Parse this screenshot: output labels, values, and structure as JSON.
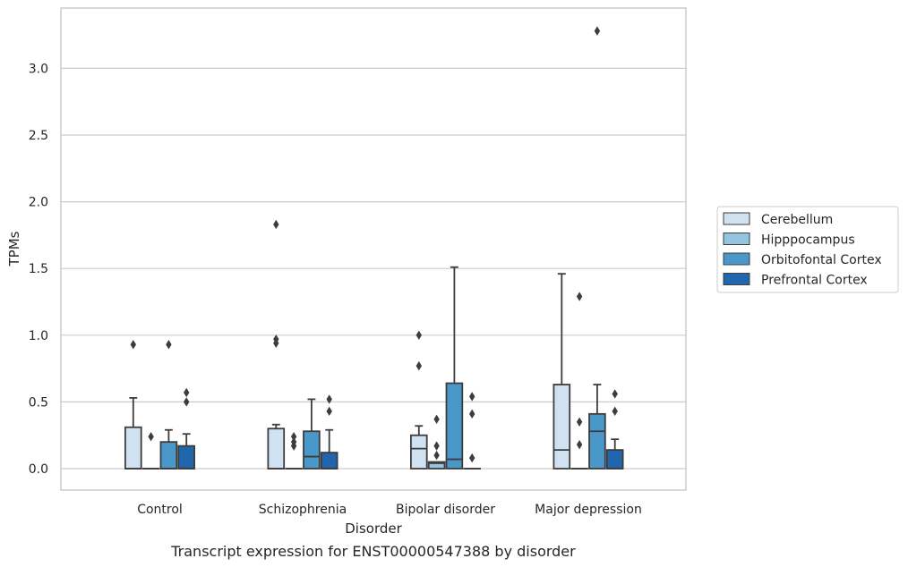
{
  "chart_data": {
    "type": "box",
    "xlabel": "Disorder",
    "ylabel": "TPMs",
    "caption": "Transcript expression for ENST00000547388 by disorder",
    "ylim": [
      -0.16,
      3.46
    ],
    "yticks": [
      "0.0",
      "0.5",
      "1.0",
      "1.5",
      "2.0",
      "2.5",
      "3.0"
    ],
    "grid": "horizontal",
    "legend_position": "right",
    "categories": [
      "Control",
      "Schizophrenia",
      "Bipolar disorder",
      "Major depression"
    ],
    "series": [
      {
        "name": "Cerebellum",
        "color": "#d0e1f2",
        "boxes": [
          {
            "q1": 0.0,
            "median": 0.0,
            "q3": 0.31,
            "whisker_low": 0.0,
            "whisker_high": 0.53,
            "outliers": [
              0.93
            ]
          },
          {
            "q1": 0.0,
            "median": 0.0,
            "q3": 0.3,
            "whisker_low": 0.0,
            "whisker_high": 0.33,
            "outliers": [
              0.94,
              0.97,
              1.83
            ]
          },
          {
            "q1": 0.0,
            "median": 0.15,
            "q3": 0.25,
            "whisker_low": 0.0,
            "whisker_high": 0.32,
            "outliers": [
              0.77,
              1.0
            ]
          },
          {
            "q1": 0.0,
            "median": 0.14,
            "q3": 0.63,
            "whisker_low": 0.0,
            "whisker_high": 1.46,
            "outliers": []
          }
        ]
      },
      {
        "name": "Hipppocampus",
        "color": "#94c4df",
        "boxes": [
          {
            "q1": 0.0,
            "median": 0.0,
            "q3": 0.0,
            "whisker_low": 0.0,
            "whisker_high": 0.0,
            "outliers": [
              0.24
            ]
          },
          {
            "q1": 0.0,
            "median": 0.0,
            "q3": 0.0,
            "whisker_low": 0.0,
            "whisker_high": 0.0,
            "outliers": [
              0.17,
              0.2,
              0.24
            ]
          },
          {
            "q1": 0.0,
            "median": 0.04,
            "q3": 0.05,
            "whisker_low": 0.0,
            "whisker_high": 0.05,
            "outliers": [
              0.1,
              0.17,
              0.37
            ]
          },
          {
            "q1": 0.0,
            "median": 0.0,
            "q3": 0.0,
            "whisker_low": 0.0,
            "whisker_high": 0.0,
            "outliers": [
              0.18,
              0.35,
              1.29
            ]
          }
        ]
      },
      {
        "name": "Orbitofontal Cortex",
        "color": "#4a98c9",
        "boxes": [
          {
            "q1": 0.0,
            "median": 0.0,
            "q3": 0.2,
            "whisker_low": 0.0,
            "whisker_high": 0.29,
            "outliers": [
              0.93
            ]
          },
          {
            "q1": 0.0,
            "median": 0.09,
            "q3": 0.28,
            "whisker_low": 0.0,
            "whisker_high": 0.52,
            "outliers": []
          },
          {
            "q1": 0.0,
            "median": 0.07,
            "q3": 0.64,
            "whisker_low": 0.0,
            "whisker_high": 1.51,
            "outliers": []
          },
          {
            "q1": 0.0,
            "median": 0.28,
            "q3": 0.41,
            "whisker_low": 0.0,
            "whisker_high": 0.63,
            "outliers": [
              3.28
            ]
          }
        ]
      },
      {
        "name": "Prefrontal Cortex",
        "color": "#2166ac",
        "boxes": [
          {
            "q1": 0.0,
            "median": 0.0,
            "q3": 0.17,
            "whisker_low": 0.0,
            "whisker_high": 0.26,
            "outliers": [
              0.5,
              0.57
            ]
          },
          {
            "q1": 0.0,
            "median": 0.0,
            "q3": 0.12,
            "whisker_low": 0.0,
            "whisker_high": 0.29,
            "outliers": [
              0.43,
              0.52
            ]
          },
          {
            "q1": 0.0,
            "median": 0.0,
            "q3": 0.0,
            "whisker_low": 0.0,
            "whisker_high": 0.0,
            "outliers": [
              0.08,
              0.41,
              0.54
            ]
          },
          {
            "q1": 0.0,
            "median": 0.0,
            "q3": 0.14,
            "whisker_low": 0.0,
            "whisker_high": 0.22,
            "outliers": [
              0.43,
              0.56
            ]
          }
        ]
      }
    ]
  }
}
